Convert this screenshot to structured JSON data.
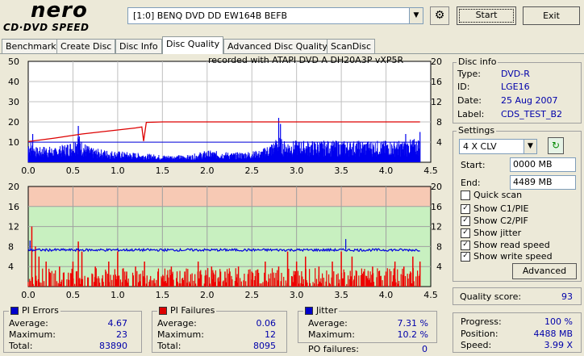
{
  "app": {
    "logo_main": "nero",
    "logo_sub": "CD·DVD SPEED"
  },
  "toolbar": {
    "drive_select": "[1:0]   BENQ DVD DD EW164B BEFB",
    "start_label": "Start",
    "exit_label": "Exit"
  },
  "tabs": [
    {
      "label": "Benchmark"
    },
    {
      "label": "Create Disc"
    },
    {
      "label": "Disc Info"
    },
    {
      "label": "Disc Quality"
    },
    {
      "label": "Advanced Disc Quality"
    },
    {
      "label": "ScanDisc"
    }
  ],
  "chart_header": "recorded with ATAPI    DVD  A   DH20A3P    vXP5R",
  "chart_data": [
    {
      "type": "bar",
      "name": "PI Errors",
      "x_range": [
        0,
        4.5
      ],
      "y_left_range": [
        0,
        50
      ],
      "y_right_range": [
        0,
        20
      ],
      "y_left_ticks": [
        "50",
        "40",
        "30",
        "20",
        "10"
      ],
      "y_right_ticks": [
        "20",
        "16",
        "12",
        "8",
        "4"
      ],
      "x_ticks": [
        "0.0",
        "0.5",
        "1.0",
        "1.5",
        "2.0",
        "2.5",
        "3.0",
        "3.5",
        "4.0",
        "4.5"
      ],
      "pi_profile": [
        [
          0.0,
          10
        ],
        [
          0.05,
          8
        ],
        [
          0.1,
          6
        ],
        [
          0.2,
          7
        ],
        [
          0.3,
          6
        ],
        [
          0.5,
          9
        ],
        [
          0.55,
          13
        ],
        [
          0.6,
          9
        ],
        [
          0.7,
          6
        ],
        [
          0.9,
          5
        ],
        [
          1.2,
          4
        ],
        [
          1.5,
          3
        ],
        [
          1.8,
          3
        ],
        [
          2.0,
          5
        ],
        [
          2.3,
          4
        ],
        [
          2.6,
          5
        ],
        [
          2.75,
          9
        ],
        [
          2.8,
          11
        ],
        [
          2.85,
          9
        ],
        [
          3.0,
          9
        ],
        [
          3.3,
          9
        ],
        [
          3.6,
          9
        ],
        [
          3.9,
          9
        ],
        [
          4.2,
          9
        ],
        [
          4.35,
          10
        ]
      ],
      "pi_spikes": [
        [
          0.05,
          14
        ],
        [
          0.56,
          18
        ],
        [
          2.8,
          22
        ],
        [
          2.82,
          19
        ],
        [
          4.22,
          14
        ],
        [
          4.38,
          15
        ]
      ],
      "read_speed": [
        [
          0.0,
          4.1
        ],
        [
          0.3,
          4.8
        ],
        [
          0.6,
          5.6
        ],
        [
          0.9,
          6.2
        ],
        [
          1.2,
          6.8
        ],
        [
          1.27,
          7.0
        ],
        [
          1.29,
          4.2
        ],
        [
          1.32,
          7.9
        ],
        [
          1.5,
          8.0
        ],
        [
          2.0,
          8.0
        ],
        [
          2.5,
          8.0
        ],
        [
          3.0,
          8.0
        ],
        [
          3.5,
          8.0
        ],
        [
          4.0,
          8.0
        ],
        [
          4.38,
          8.0
        ]
      ],
      "write_speed": [
        [
          0.0,
          3.99
        ],
        [
          4.38,
          3.99
        ]
      ]
    },
    {
      "type": "bar",
      "name": "PI Failures / Jitter",
      "x_range": [
        0,
        4.5
      ],
      "y_left_range": [
        0,
        20
      ],
      "y_right_range": [
        0,
        20
      ],
      "y_left_ticks": [
        "20",
        "16",
        "12",
        "8",
        "4"
      ],
      "y_right_ticks": [
        "20",
        "16",
        "12",
        "8",
        "4"
      ],
      "x_ticks": [
        "0.0",
        "0.5",
        "1.0",
        "1.5",
        "2.0",
        "2.5",
        "3.0",
        "3.5",
        "4.0",
        "4.5"
      ],
      "jitter_level": 7.31,
      "jitter_spikes": [
        [
          0.02,
          9.2
        ],
        [
          3.55,
          9.5
        ]
      ],
      "pif_spikes": [
        [
          0.04,
          12
        ],
        [
          0.08,
          8
        ],
        [
          0.12,
          6
        ],
        [
          0.2,
          5
        ],
        [
          0.35,
          4
        ],
        [
          0.5,
          5
        ],
        [
          0.56,
          9
        ],
        [
          0.6,
          7
        ],
        [
          0.75,
          4
        ],
        [
          0.9,
          5
        ],
        [
          1.0,
          7
        ],
        [
          1.1,
          3
        ],
        [
          1.2,
          4
        ],
        [
          1.3,
          5
        ],
        [
          1.45,
          3
        ],
        [
          1.6,
          4
        ],
        [
          1.75,
          3
        ],
        [
          1.9,
          5
        ],
        [
          2.05,
          4
        ],
        [
          2.2,
          3
        ],
        [
          2.35,
          4
        ],
        [
          2.5,
          3
        ],
        [
          2.65,
          5
        ],
        [
          2.8,
          4
        ],
        [
          2.9,
          7
        ],
        [
          3.0,
          5
        ],
        [
          3.1,
          6
        ],
        [
          3.25,
          4
        ],
        [
          3.4,
          5
        ],
        [
          3.5,
          7
        ],
        [
          3.62,
          6
        ],
        [
          3.75,
          3
        ],
        [
          3.85,
          4
        ],
        [
          4.0,
          3
        ],
        [
          4.1,
          5
        ],
        [
          4.2,
          4
        ],
        [
          4.3,
          6
        ],
        [
          4.38,
          5
        ]
      ]
    }
  ],
  "disc_info": {
    "title": "Disc info",
    "type_label": "Type:",
    "type_value": "DVD-R",
    "id_label": "ID:",
    "id_value": "LGE16",
    "date_label": "Date:",
    "date_value": "25 Aug 2007",
    "label_label": "Label:",
    "label_value": "CDS_TEST_B2"
  },
  "settings": {
    "title": "Settings",
    "speed": "4 X CLV",
    "start_label": "Start:",
    "start_value": "0000 MB",
    "end_label": "End:",
    "end_value": "4489 MB",
    "checks": [
      {
        "label": "Quick scan",
        "checked": false
      },
      {
        "label": "Show C1/PIE",
        "checked": true
      },
      {
        "label": "Show C2/PIF",
        "checked": true
      },
      {
        "label": "Show jitter",
        "checked": true
      },
      {
        "label": "Show read speed",
        "checked": true
      },
      {
        "label": "Show write speed",
        "checked": true
      }
    ],
    "advanced_label": "Advanced"
  },
  "quality": {
    "label": "Quality score:",
    "value": "93"
  },
  "progress": {
    "progress_label": "Progress:",
    "progress_value": "100 %",
    "position_label": "Position:",
    "position_value": "4488 MB",
    "speed_label": "Speed:",
    "speed_value": "3.99 X"
  },
  "pi_errors": {
    "title": "PI Errors",
    "color": "#0000cc",
    "avg_label": "Average:",
    "avg": "4.67",
    "max_label": "Maximum:",
    "max": "23",
    "total_label": "Total:",
    "total": "83890"
  },
  "pi_failures": {
    "title": "PI Failures",
    "color": "#dd0000",
    "avg_label": "Average:",
    "avg": "0.06",
    "max_label": "Maximum:",
    "max": "12",
    "total_label": "Total:",
    "total": "8095"
  },
  "jitter": {
    "title": "Jitter",
    "color": "#0000cc",
    "avg_label": "Average:",
    "avg": "7.31 %",
    "max_label": "Maximum:",
    "max": "10.2 %",
    "po_label": "PO failures:",
    "po": "0"
  },
  "colors": {
    "pi": "#0000ee",
    "pif": "#ee0000",
    "read": "#dd0000",
    "write": "#0000dd",
    "band_red": "#f7c9b4",
    "band_green": "#c8f0c0"
  }
}
